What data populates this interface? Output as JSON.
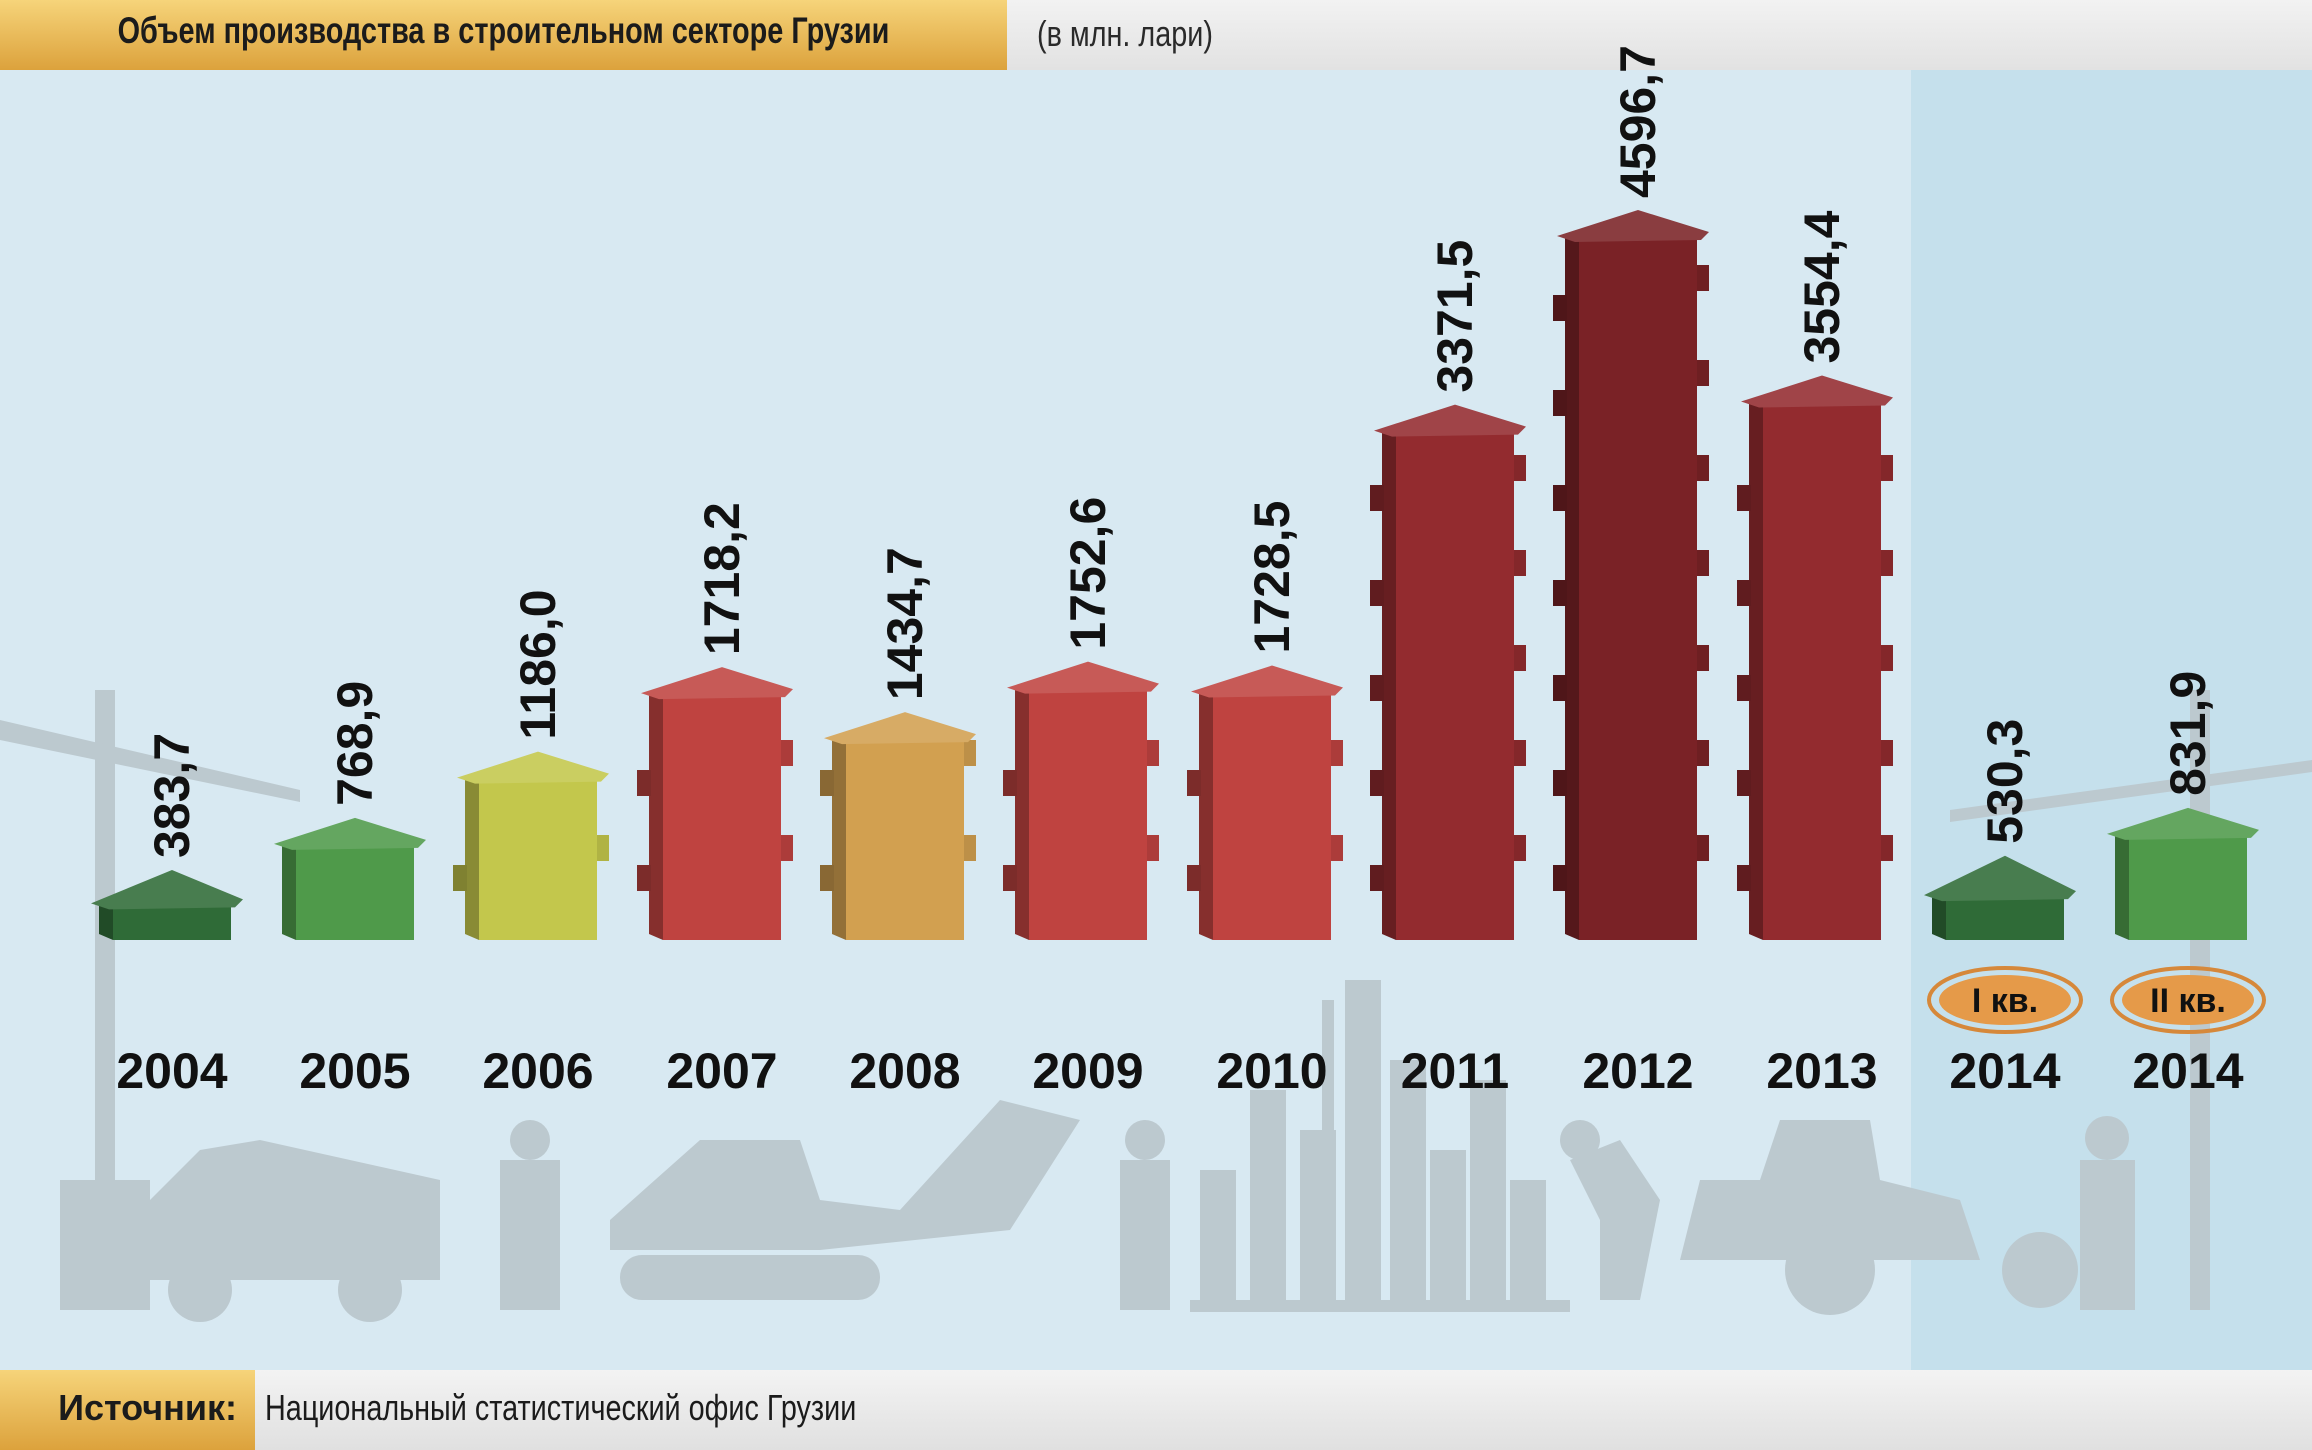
{
  "header": {
    "title": "Объем производства в строительном секторе Грузии",
    "unit": "(в млн. лари)"
  },
  "footer": {
    "source_label": "Источник:",
    "source_text": "Национальный статистический офис Грузии"
  },
  "colors": {
    "background": "#d8e9f2",
    "quarter_panel": "#c5e0ec",
    "silhouettes": "#bcc9cf",
    "accent_gold": "#e5b04c",
    "badge_fill": "#e59a49",
    "badge_ring": "#d6883a"
  },
  "chart_data": {
    "type": "bar",
    "title": "Объем производства в строительном секторе Грузии",
    "unit": "(в млн. лари)",
    "categories": [
      "2004",
      "2005",
      "2006",
      "2007",
      "2008",
      "2009",
      "2010",
      "2011",
      "2012",
      "2013",
      "2014",
      "2014"
    ],
    "value_labels": [
      "383,7",
      "768,9",
      "1186,0",
      "1718,2",
      "1434,7",
      "1752,6",
      "1728,5",
      "3371,5",
      "4596,7",
      "3554,4",
      "530,3",
      "831,9"
    ],
    "values": [
      383.7,
      768.9,
      1186.0,
      1718.2,
      1434.7,
      1752.6,
      1728.5,
      3371.5,
      4596.7,
      3554.4,
      530.3,
      831.9
    ],
    "quarter_labels": [
      "",
      "",
      "",
      "",
      "",
      "",
      "",
      "",
      "",
      "",
      "I кв.",
      "II кв."
    ],
    "bar_colors": [
      "#2f6b37",
      "#4f9a4a",
      "#c3c74c",
      "#bf4340",
      "#d2a050",
      "#bf4340",
      "#bf4340",
      "#932b2f",
      "#7a2226",
      "#932b2f",
      "#2f6b37",
      "#4f9a4a"
    ],
    "bar_shape": "house",
    "grid": false,
    "legend": "none"
  }
}
